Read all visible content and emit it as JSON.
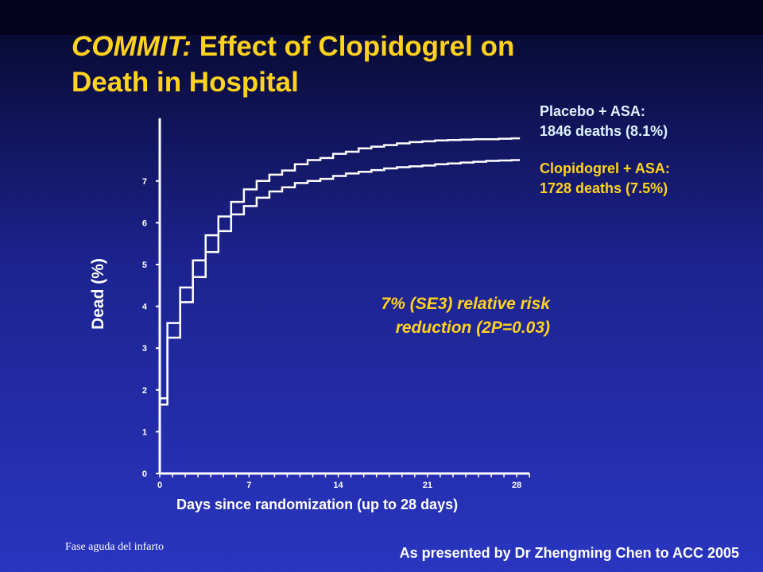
{
  "slide": {
    "title_italic": "COMMIT:",
    "title_rest": " Effect of Clopidogrel on",
    "title_line2": "Death in Hospital",
    "footer_left": "Fase aguda del infarto",
    "footer_right": "As presented by Dr Zhengming Chen to ACC 2005"
  },
  "legend": {
    "placebo_line1": "Placebo + ASA:",
    "placebo_line2": "1846 deaths (8.1%)",
    "clopidogrel_line1": "Clopidogrel + ASA:",
    "clopidogrel_line2": "1728 deaths (7.5%)"
  },
  "annotation": {
    "line1": "7% (SE3) relative risk",
    "line2": "reduction (2P=0.03)"
  },
  "colors": {
    "title": "#ffd21e",
    "placebo": "#dff2ff",
    "clopidogrel": "#ffd21e",
    "curve": "#ffffff"
  },
  "chart_data": {
    "type": "line",
    "xlabel": "Days since randomization (up to 28 days)",
    "ylabel": "Dead (%)",
    "xlim": [
      0,
      29
    ],
    "ylim": [
      0,
      8
    ],
    "xticks": [
      0,
      7,
      14,
      21,
      28
    ],
    "yticks": [
      0,
      1,
      2,
      3,
      4,
      5,
      6,
      7
    ],
    "grid": false,
    "step": true,
    "series": [
      {
        "name": "Placebo + ASA",
        "x": [
          0,
          1,
          2,
          3,
          4,
          5,
          6,
          7,
          8,
          9,
          10,
          11,
          12,
          13,
          14,
          15,
          16,
          17,
          18,
          19,
          20,
          21,
          22,
          23,
          24,
          25,
          26,
          27,
          28
        ],
        "y": [
          1.8,
          3.6,
          4.45,
          5.1,
          5.7,
          6.15,
          6.5,
          6.8,
          7.0,
          7.15,
          7.25,
          7.4,
          7.5,
          7.55,
          7.65,
          7.7,
          7.78,
          7.82,
          7.86,
          7.9,
          7.93,
          7.95,
          7.97,
          7.98,
          7.99,
          8.0,
          8.0,
          8.01,
          8.02
        ]
      },
      {
        "name": "Clopidogrel + ASA",
        "x": [
          0,
          1,
          2,
          3,
          4,
          5,
          6,
          7,
          8,
          9,
          10,
          11,
          12,
          13,
          14,
          15,
          16,
          17,
          18,
          19,
          20,
          21,
          22,
          23,
          24,
          25,
          26,
          27,
          28
        ],
        "y": [
          1.65,
          3.25,
          4.1,
          4.7,
          5.3,
          5.8,
          6.2,
          6.4,
          6.6,
          6.75,
          6.85,
          6.95,
          7.0,
          7.05,
          7.12,
          7.18,
          7.22,
          7.26,
          7.3,
          7.33,
          7.35,
          7.37,
          7.4,
          7.42,
          7.44,
          7.46,
          7.48,
          7.49,
          7.5
        ]
      }
    ]
  }
}
